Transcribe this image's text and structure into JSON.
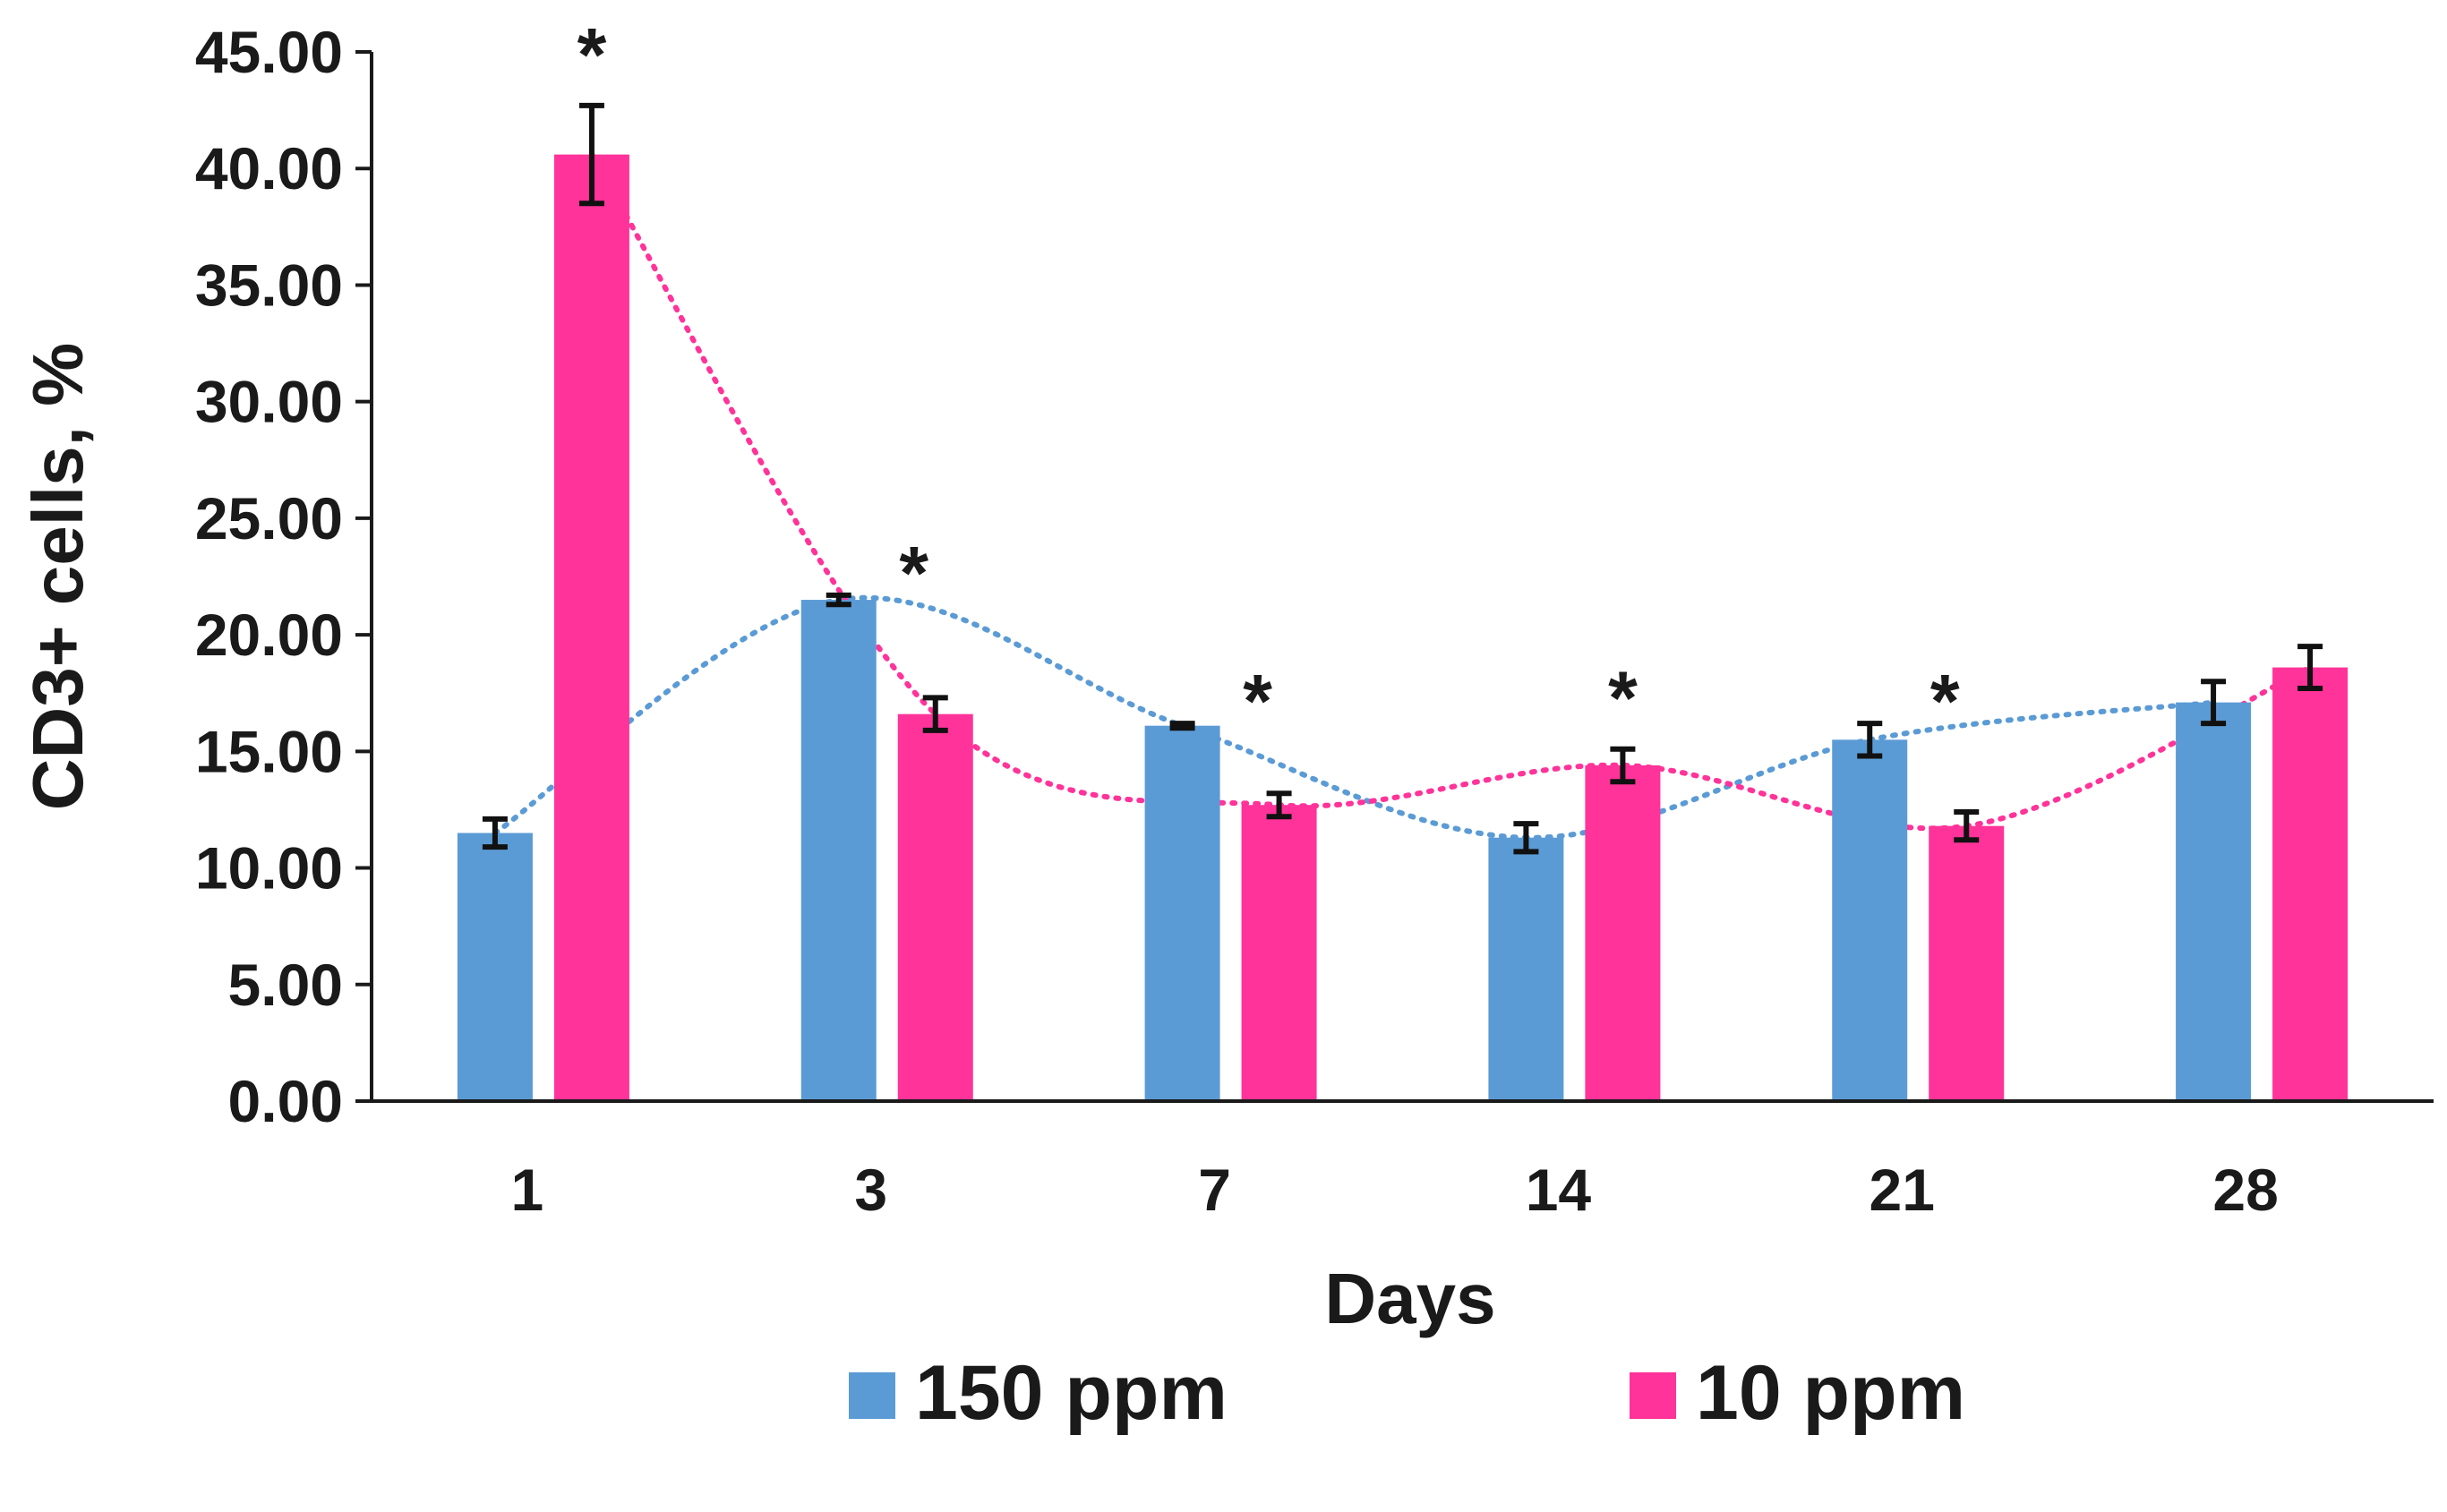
{
  "chart_data": {
    "type": "bar",
    "ylabel": "CD3+ cells, %",
    "xlabel": "Days",
    "categories": [
      "1",
      "3",
      "7",
      "14",
      "21",
      "28"
    ],
    "ylim": [
      0,
      45
    ],
    "yticks": [
      "0.00",
      "5.00",
      "10.00",
      "15.00",
      "20.00",
      "25.00",
      "30.00",
      "35.00",
      "40.00",
      "45.00"
    ],
    "series": [
      {
        "name": "150 ppm",
        "color": "#5b9bd5",
        "values": [
          11.5,
          21.5,
          16.1,
          11.3,
          15.5,
          17.1
        ],
        "errors": [
          0.6,
          0.2,
          0.1,
          0.6,
          0.7,
          0.9
        ]
      },
      {
        "name": "10 ppm",
        "color": "#ff3399",
        "values": [
          40.6,
          16.6,
          12.7,
          14.4,
          11.8,
          18.6
        ],
        "errors": [
          2.1,
          0.7,
          0.5,
          0.7,
          0.6,
          0.9
        ]
      }
    ],
    "trendlines": [
      {
        "series": "150 ppm",
        "style": "dotted",
        "color": "#5b9bd5",
        "points": [
          11.5,
          21.5,
          16.1,
          11.3,
          15.5,
          17.1
        ]
      },
      {
        "series": "10 ppm",
        "style": "dotted",
        "color": "#ff3399",
        "points": [
          40.6,
          16.6,
          12.7,
          14.4,
          11.8,
          18.6
        ]
      }
    ],
    "annotations": [
      {
        "text": "*",
        "category": "1"
      },
      {
        "text": "*",
        "category": "3"
      },
      {
        "text": "*",
        "category": "7"
      },
      {
        "text": "*",
        "category": "14"
      },
      {
        "text": "*",
        "category": "21"
      }
    ],
    "legend": {
      "position": "bottom"
    }
  }
}
